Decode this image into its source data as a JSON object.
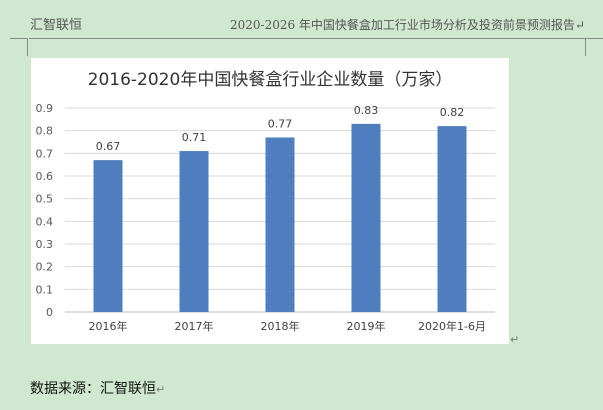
{
  "header": {
    "company": "汇智联恒",
    "doc_title": "2020-2026 年中国快餐盒加工行业市场分析及投资前景预测报告",
    "para_mark": "↵"
  },
  "chart_data": {
    "type": "bar",
    "title": "2016-2020年中国快餐盒行业企业数量（万家）",
    "categories": [
      "2016年",
      "2017年",
      "2018年",
      "2019年",
      "2020年1-6月"
    ],
    "values": [
      0.67,
      0.71,
      0.77,
      0.83,
      0.82
    ],
    "value_labels": [
      "0.67",
      "0.71",
      "0.77",
      "0.83",
      "0.82"
    ],
    "ylim": [
      0,
      0.9
    ],
    "yticks": [
      "0",
      "0.1",
      "0.2",
      "0.3",
      "0.4",
      "0.5",
      "0.6",
      "0.7",
      "0.8",
      "0.9"
    ],
    "grid": true,
    "bar_color": "#4f7ebf"
  },
  "footer": {
    "source": "数据来源：汇智联恒",
    "para_mark": "↵"
  }
}
